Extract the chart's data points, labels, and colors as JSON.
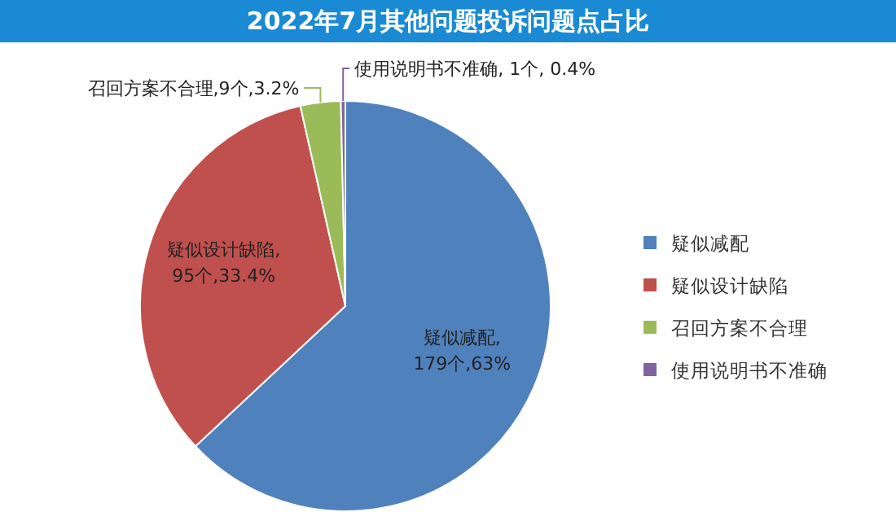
{
  "chart_data": {
    "type": "pie",
    "title": "2022年7月其他问题投诉问题点占比",
    "categories": [
      "疑似减配",
      "疑似设计缺陷",
      "召回方案不合理",
      "使用说明书不准确"
    ],
    "values": [
      179,
      95,
      9,
      1
    ],
    "colors": [
      "#4f81bd",
      "#c0504d",
      "#9bbb59",
      "#8064a2"
    ],
    "value_labels": [
      "疑似减配,\n179个,63%",
      "疑似设计缺陷,\n95个,33.4%",
      "召回方案不合理,9个,3.2%",
      "使用说明书不准确, 1个, 0.4%"
    ],
    "legend": "right"
  }
}
